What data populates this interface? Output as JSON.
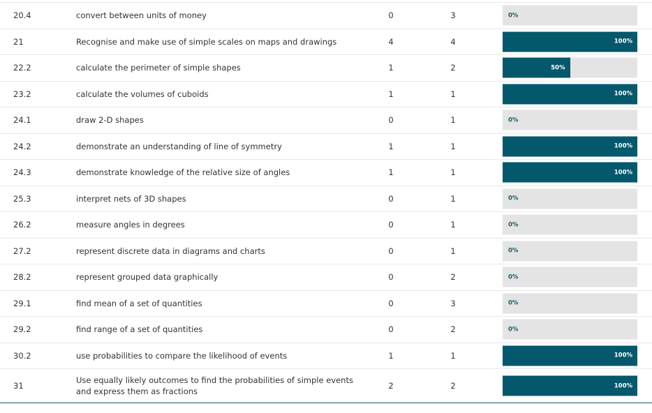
{
  "colors": {
    "bar_fill": "#03586c",
    "bar_track": "#e4e4e4"
  },
  "rows": [
    {
      "code": "20.4",
      "description": "convert between units of money",
      "achieved": "0",
      "total": "3",
      "percent": 0,
      "percent_label": "0%"
    },
    {
      "code": "21",
      "description": "Recognise and make use of simple scales on maps and drawings",
      "achieved": "4",
      "total": "4",
      "percent": 100,
      "percent_label": "100%"
    },
    {
      "code": "22.2",
      "description": "calculate the perimeter of simple shapes",
      "achieved": "1",
      "total": "2",
      "percent": 50,
      "percent_label": "50%"
    },
    {
      "code": "23.2",
      "description": "calculate the volumes of cuboids",
      "achieved": "1",
      "total": "1",
      "percent": 100,
      "percent_label": "100%"
    },
    {
      "code": "24.1",
      "description": "draw 2-D shapes",
      "achieved": "0",
      "total": "1",
      "percent": 0,
      "percent_label": "0%"
    },
    {
      "code": "24.2",
      "description": "demonstrate an understanding of line of symmetry",
      "achieved": "1",
      "total": "1",
      "percent": 100,
      "percent_label": "100%"
    },
    {
      "code": "24.3",
      "description": "demonstrate knowledge of the relative size of angles",
      "achieved": "1",
      "total": "1",
      "percent": 100,
      "percent_label": "100%"
    },
    {
      "code": "25.3",
      "description": "interpret nets of 3D shapes",
      "achieved": "0",
      "total": "1",
      "percent": 0,
      "percent_label": "0%"
    },
    {
      "code": "26.2",
      "description": "measure angles in degrees",
      "achieved": "0",
      "total": "1",
      "percent": 0,
      "percent_label": "0%"
    },
    {
      "code": "27.2",
      "description": "represent discrete data in diagrams and charts",
      "achieved": "0",
      "total": "1",
      "percent": 0,
      "percent_label": "0%"
    },
    {
      "code": "28.2",
      "description": "represent grouped data graphically",
      "achieved": "0",
      "total": "2",
      "percent": 0,
      "percent_label": "0%"
    },
    {
      "code": "29.1",
      "description": "find mean of a set of quantities",
      "achieved": "0",
      "total": "3",
      "percent": 0,
      "percent_label": "0%"
    },
    {
      "code": "29.2",
      "description": "find range of a set of quantities",
      "achieved": "0",
      "total": "2",
      "percent": 0,
      "percent_label": "0%"
    },
    {
      "code": "30.2",
      "description": "use probabilities to compare the likelihood of events",
      "achieved": "1",
      "total": "1",
      "percent": 100,
      "percent_label": "100%"
    },
    {
      "code": "31",
      "description": "Use equally likely outcomes to find the probabilities of simple events and express them as fractions",
      "achieved": "2",
      "total": "2",
      "percent": 100,
      "percent_label": "100%"
    }
  ]
}
